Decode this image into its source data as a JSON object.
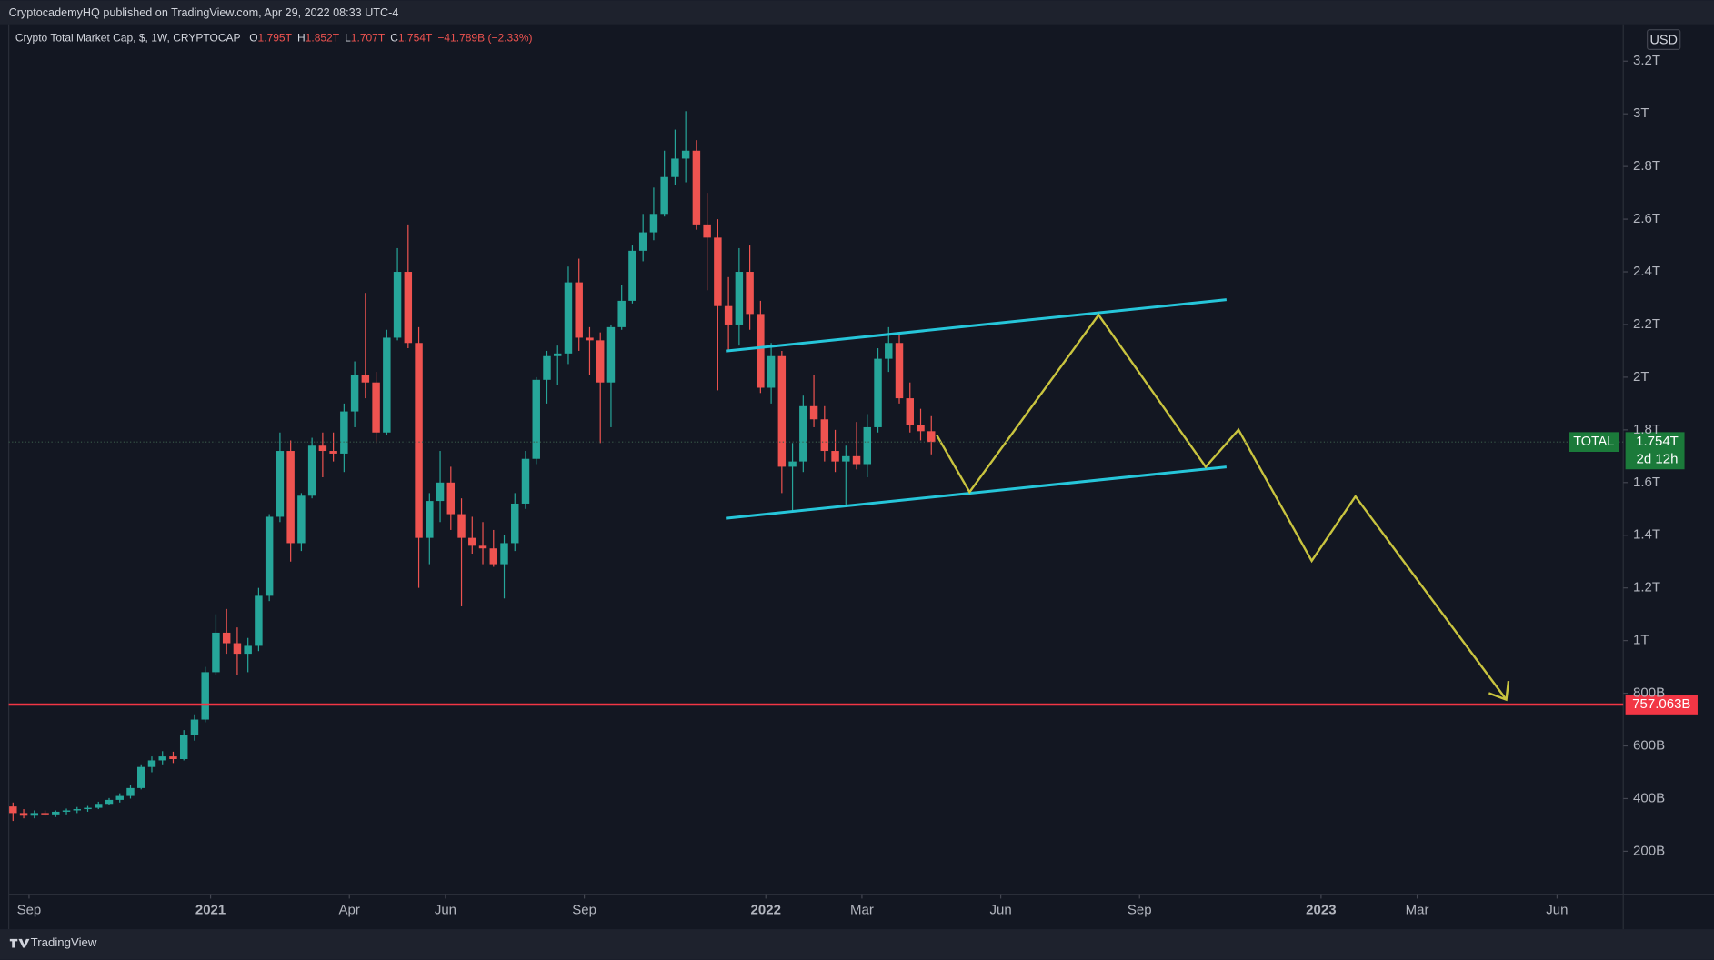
{
  "header": {
    "publisher": "CryptocademyHQ published on TradingView.com, Apr 29, 2022 08:33 UTC-4",
    "footer": "TradingView"
  },
  "chart_data": {
    "type": "candlestick",
    "title": "Crypto Total Market Cap, $, 1W, CRYPTOCAP",
    "ohlc_legend": [
      {
        "key": "O",
        "value": "1.795T"
      },
      {
        "key": "H",
        "value": "1.852T"
      },
      {
        "key": "L",
        "value": "1.707T"
      },
      {
        "key": "C",
        "value": "1.754T"
      }
    ],
    "change": "−41.789B (−2.33%)",
    "currency": "USD",
    "series": [
      {
        "name": "TOTAL",
        "up_color": "#26a69a",
        "down_color": "#ef5350",
        "open": [
          370,
          345,
          335,
          345,
          340,
          350,
          355,
          360,
          365,
          380,
          395,
          410,
          440,
          520,
          545,
          560,
          550,
          640,
          700,
          880,
          1030,
          990,
          950,
          980,
          1170,
          1470,
          1720,
          1370,
          1550,
          1740,
          1720,
          1710,
          1870,
          2010,
          1980,
          1790,
          2150,
          2400,
          2130,
          1390,
          1530,
          1600,
          1480,
          1390,
          1360,
          1350,
          1290,
          1370,
          1520,
          1690,
          1990,
          2080,
          2090,
          2360,
          2150,
          2140,
          1980,
          2190,
          2290,
          2480,
          2550,
          2620,
          2760,
          2830,
          2860,
          2580,
          2530,
          2270,
          2200,
          2400,
          2240,
          1960,
          2080,
          1660,
          1680,
          1890,
          1840,
          1720,
          1680,
          1700,
          1670,
          1810,
          2070,
          2130,
          1920,
          1820,
          1795
        ],
        "high": [
          385,
          360,
          355,
          355,
          355,
          362,
          368,
          372,
          388,
          402,
          420,
          452,
          530,
          560,
          580,
          578,
          660,
          720,
          900,
          1100,
          1120,
          1050,
          1010,
          1200,
          1480,
          1790,
          1760,
          1560,
          1770,
          1790,
          1790,
          1900,
          2060,
          2320,
          2020,
          2180,
          2490,
          2580,
          2190,
          1560,
          1720,
          1660,
          1540,
          1470,
          1450,
          1420,
          1400,
          1560,
          1720,
          2000,
          2100,
          2120,
          2420,
          2450,
          2190,
          2170,
          2200,
          2350,
          2500,
          2620,
          2720,
          2860,
          2940,
          3010,
          2900,
          2700,
          2600,
          2380,
          2490,
          2500,
          2290,
          2130,
          2100,
          1750,
          1930,
          2010,
          1890,
          1800,
          1740,
          1830,
          1860,
          2110,
          2190,
          2170,
          1980,
          1880,
          1852
        ],
        "low": [
          315,
          325,
          325,
          335,
          330,
          340,
          345,
          350,
          360,
          375,
          385,
          400,
          435,
          500,
          530,
          535,
          545,
          620,
          690,
          870,
          950,
          870,
          880,
          960,
          1150,
          1450,
          1300,
          1340,
          1540,
          1620,
          1680,
          1640,
          1810,
          1920,
          1750,
          1780,
          2140,
          2110,
          1200,
          1290,
          1450,
          1420,
          1130,
          1330,
          1290,
          1280,
          1160,
          1340,
          1500,
          1670,
          1900,
          1970,
          2050,
          2100,
          2010,
          1750,
          1810,
          2180,
          2280,
          2440,
          2520,
          2610,
          2730,
          2740,
          2560,
          2330,
          1950,
          2100,
          2120,
          2180,
          1940,
          1900,
          1560,
          1490,
          1640,
          1810,
          1680,
          1640,
          1510,
          1650,
          1620,
          1790,
          2020,
          1900,
          1790,
          1760,
          1707
        ],
        "close": [
          345,
          335,
          345,
          340,
          350,
          355,
          360,
          365,
          380,
          395,
          410,
          440,
          520,
          545,
          560,
          550,
          640,
          700,
          880,
          1030,
          990,
          950,
          980,
          1170,
          1470,
          1720,
          1370,
          1550,
          1740,
          1720,
          1710,
          1870,
          2010,
          1980,
          1790,
          2150,
          2400,
          2130,
          1390,
          1530,
          1600,
          1480,
          1390,
          1360,
          1350,
          1290,
          1370,
          1520,
          1690,
          1990,
          2080,
          2090,
          2360,
          2150,
          2140,
          1980,
          2190,
          2290,
          2480,
          2550,
          2620,
          2760,
          2830,
          2860,
          2580,
          2530,
          2270,
          2200,
          2400,
          2240,
          1960,
          2080,
          1660,
          1680,
          1890,
          1840,
          1720,
          1680,
          1700,
          1670,
          1810,
          2070,
          2130,
          1920,
          1820,
          1795,
          1754
        ]
      }
    ],
    "last_price": {
      "value": 1754,
      "label": "1.754T",
      "countdown": "2d 12h",
      "color": "#1b7a3a"
    },
    "hline": {
      "value": 757.063,
      "label": "757.063B",
      "color": "#f23645"
    },
    "xlim": [
      -0.4,
      150.8
    ],
    "xticks": [
      {
        "value": 1.5,
        "label": "Sep"
      },
      {
        "value": 18.5,
        "label": "2021"
      },
      {
        "value": 31.5,
        "label": "Apr"
      },
      {
        "value": 40.5,
        "label": "Jun"
      },
      {
        "value": 53.5,
        "label": "Sep"
      },
      {
        "value": 70.5,
        "label": "2022"
      },
      {
        "value": 79.5,
        "label": "Mar"
      },
      {
        "value": 92.5,
        "label": "Jun"
      },
      {
        "value": 105.5,
        "label": "Sep"
      },
      {
        "value": 122.5,
        "label": "2023"
      },
      {
        "value": 131.5,
        "label": "Mar"
      },
      {
        "value": 144.6,
        "label": "Jun"
      }
    ],
    "ylim": [
      37,
      3340
    ],
    "yticks": [
      {
        "value": 200,
        "label": "200B"
      },
      {
        "value": 400,
        "label": "400B"
      },
      {
        "value": 600,
        "label": "600B"
      },
      {
        "value": 800,
        "label": "800B"
      },
      {
        "value": 1000,
        "label": "1T"
      },
      {
        "value": 1200,
        "label": "1.2T"
      },
      {
        "value": 1400,
        "label": "1.4T"
      },
      {
        "value": 1600,
        "label": "1.6T"
      },
      {
        "value": 1800,
        "label": "1.8T"
      },
      {
        "value": 2000,
        "label": "2T"
      },
      {
        "value": 2200,
        "label": "2.2T"
      },
      {
        "value": 2400,
        "label": "2.4T"
      },
      {
        "value": 2600,
        "label": "2.6T"
      },
      {
        "value": 2800,
        "label": "2.8T"
      },
      {
        "value": 3000,
        "label": "3T"
      },
      {
        "value": 3200,
        "label": "3.2T"
      }
    ],
    "grid": false
  }
}
